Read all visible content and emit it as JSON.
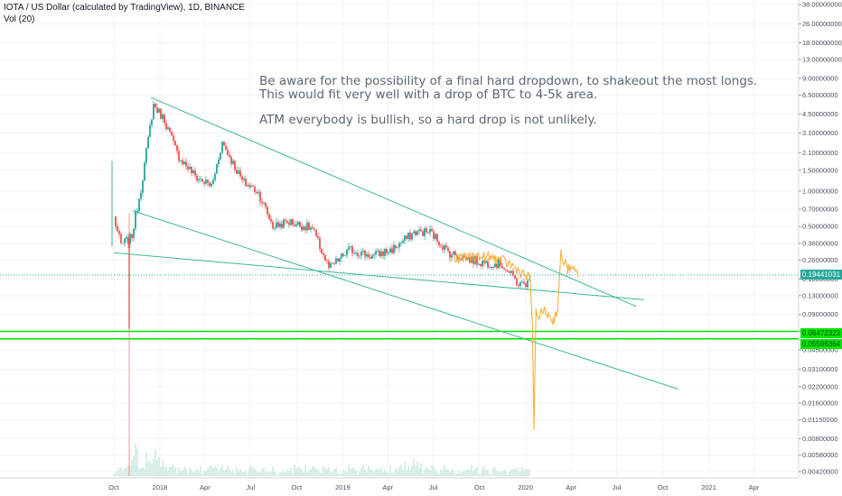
{
  "header": {
    "title": "IOTA / US Dollar (calculated by TradingView), 1D, BINANCE",
    "indicator": "Vol (20)"
  },
  "annotation": {
    "line1": "Be aware for the possibility of a final hard dropdown, to shakeout the most longs.",
    "line2": "This would fit very well with a drop of BTC to 4-5k area.",
    "line3": "ATM everybody is bullish, so a hard drop is not unlikely."
  },
  "colors": {
    "background": "#ffffff",
    "grid": "#f0f3fa",
    "candle_up": "#26a69a",
    "candle_down": "#ef5350",
    "trendline": "#3cb896",
    "horizontal_level": "#00e600",
    "current_price": "#26a69a",
    "projection": "#f5a623",
    "volume": "#cfe9e3",
    "axis_text": "#4a4f5c"
  },
  "price_labels": {
    "current": "0.19441031",
    "level_upper": "0.06472323",
    "level_lower": "0.05596364"
  },
  "chart_data": {
    "type": "candlestick",
    "symbol": "IOTAUSD",
    "exchange": "BINANCE",
    "interval": "1D",
    "y_scale": "log",
    "y_ticks": [
      "38.00000000",
      "26.00000000",
      "18.00000000",
      "13.00000000",
      "9.00000000",
      "6.50000000",
      "4.50000000",
      "3.10000000",
      "2.10000000",
      "1.50000000",
      "1.00000000",
      "0.70000000",
      "0.50000000",
      "0.36000000",
      "0.26000000",
      "0.18000000",
      "0.13000000",
      "0.09000000",
      "0.06500000",
      "0.04500000",
      "0.03100000",
      "0.02200000",
      "0.01600000",
      "0.01150000",
      "0.00800000",
      "0.00580000",
      "0.00420000"
    ],
    "x_ticks": [
      "Oct",
      "2018",
      "Apr",
      "Jul",
      "Oct",
      "2019",
      "Apr",
      "Jul",
      "Oct",
      "2020",
      "Apr",
      "Jul",
      "Oct",
      "2021",
      "Apr"
    ],
    "price_path": [
      {
        "date": "2017-10-01",
        "price": 0.6
      },
      {
        "date": "2017-10-15",
        "price": 0.35
      },
      {
        "date": "2017-11-05",
        "price": 0.4
      },
      {
        "date": "2017-11-25",
        "price": 1.1
      },
      {
        "date": "2017-12-10",
        "price": 3.0
      },
      {
        "date": "2017-12-19",
        "price": 5.4
      },
      {
        "date": "2018-01-10",
        "price": 4.0
      },
      {
        "date": "2018-02-06",
        "price": 2.0
      },
      {
        "date": "2018-03-15",
        "price": 1.3
      },
      {
        "date": "2018-04-15",
        "price": 1.1
      },
      {
        "date": "2018-05-05",
        "price": 2.6
      },
      {
        "date": "2018-06-15",
        "price": 1.2
      },
      {
        "date": "2018-07-15",
        "price": 1.0
      },
      {
        "date": "2018-08-15",
        "price": 0.5
      },
      {
        "date": "2018-09-15",
        "price": 0.55
      },
      {
        "date": "2018-11-01",
        "price": 0.48
      },
      {
        "date": "2018-12-05",
        "price": 0.22
      },
      {
        "date": "2019-01-15",
        "price": 0.32
      },
      {
        "date": "2019-03-01",
        "price": 0.28
      },
      {
        "date": "2019-04-10",
        "price": 0.32
      },
      {
        "date": "2019-05-25",
        "price": 0.45
      },
      {
        "date": "2019-06-25",
        "price": 0.45
      },
      {
        "date": "2019-08-01",
        "price": 0.3
      },
      {
        "date": "2019-10-01",
        "price": 0.25
      },
      {
        "date": "2019-11-15",
        "price": 0.24
      },
      {
        "date": "2019-12-20",
        "price": 0.16
      },
      {
        "date": "2020-01-10",
        "price": 0.17
      }
    ],
    "projection_path": [
      {
        "date": "2019-08-10",
        "price": 0.26
      },
      {
        "date": "2019-09-20",
        "price": 0.28
      },
      {
        "date": "2019-11-01",
        "price": 0.27
      },
      {
        "date": "2019-12-01",
        "price": 0.24
      },
      {
        "date": "2020-01-10",
        "price": 0.18
      },
      {
        "date": "2020-01-15",
        "price": 0.07
      },
      {
        "date": "2020-01-18",
        "price": 0.01
      },
      {
        "date": "2020-01-22",
        "price": 0.09
      },
      {
        "date": "2020-02-10",
        "price": 0.095
      },
      {
        "date": "2020-02-25",
        "price": 0.08
      },
      {
        "date": "2020-03-05",
        "price": 0.1
      },
      {
        "date": "2020-03-12",
        "price": 0.29
      },
      {
        "date": "2020-03-25",
        "price": 0.22
      },
      {
        "date": "2020-04-15",
        "price": 0.2
      }
    ],
    "trendlines": [
      {
        "from": {
          "date": "2017-12-14",
          "price": 6.2
        },
        "to": {
          "date": "2020-08-10",
          "price": 0.105
        }
      },
      {
        "from": {
          "date": "2017-11-08",
          "price": 0.68
        },
        "to": {
          "date": "2020-11-01",
          "price": 0.021
        }
      },
      {
        "from": {
          "date": "2017-10-01",
          "price": 0.3
        },
        "to": {
          "date": "2020-08-25",
          "price": 0.12
        }
      }
    ],
    "horizontal_levels": [
      0.06472323,
      0.05596364
    ],
    "current_price": 0.19441031,
    "volume_note": "Vol (20) histogram at bottom of pane"
  }
}
